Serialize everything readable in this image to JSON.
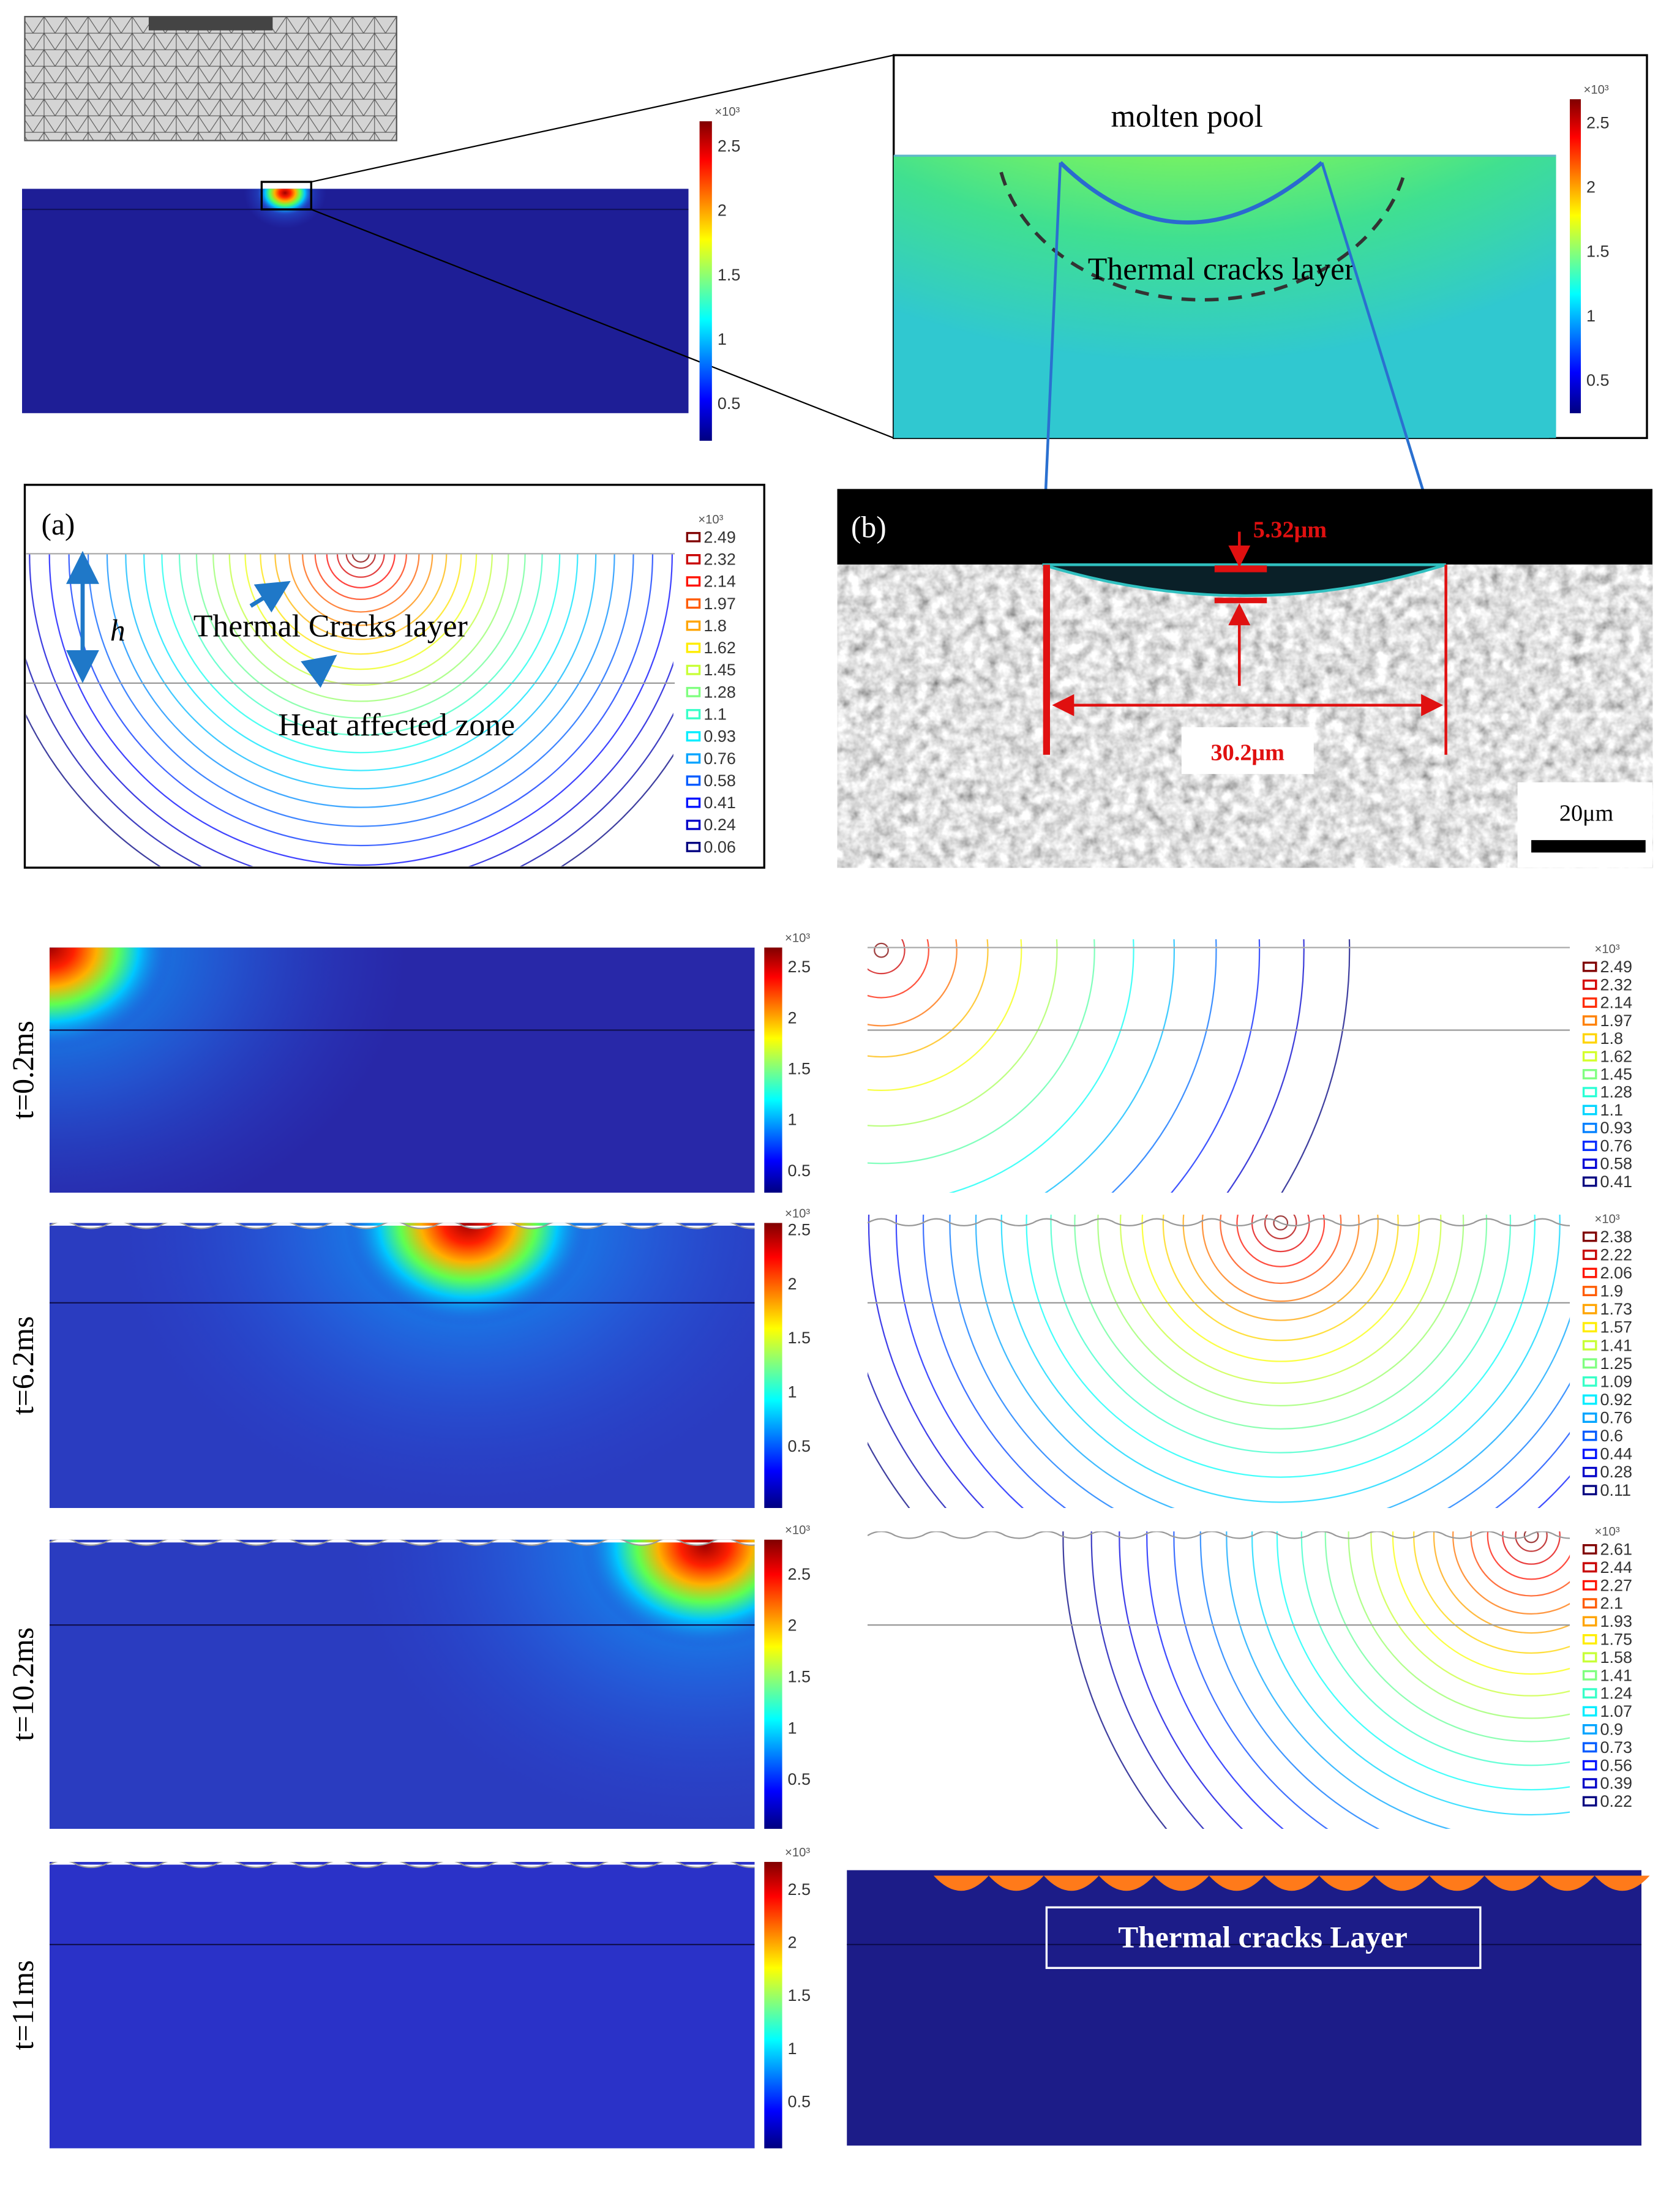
{
  "top_left_colorbar": {
    "exponent": "×10³",
    "ticks": [
      2.5,
      2,
      1.5,
      1,
      0.5
    ]
  },
  "zoom_panel": {
    "molten_pool": "molten pool",
    "layer": "Thermal cracks layer",
    "colorbar": {
      "exponent": "×10³",
      "ticks": [
        2.5,
        2,
        1.5,
        1,
        0.5
      ]
    }
  },
  "panel_a": {
    "label": "(a)",
    "height_symbol": "h",
    "cracks": "Thermal Cracks layer",
    "haz": "Heat affected zone",
    "colorbar": {
      "exponent": "×10³",
      "ticks": [
        2.49,
        2.32,
        2.14,
        1.97,
        1.8,
        1.62,
        1.45,
        1.28,
        1.1,
        0.93,
        0.76,
        0.58,
        0.41,
        0.24,
        0.06
      ]
    }
  },
  "panel_b": {
    "label": "(b)",
    "depth": "5.32μm",
    "width": "30.2μm",
    "scale": "20μm"
  },
  "rows": [
    {
      "time": "t=0.2ms",
      "field_colorbar": {
        "exponent": "×10³",
        "ticks": [
          2.5,
          2,
          1.5,
          1,
          0.5
        ]
      },
      "contour_colorbar": {
        "exponent": "×10³",
        "ticks": [
          2.49,
          2.32,
          2.14,
          1.97,
          1.8,
          1.62,
          1.45,
          1.28,
          1.1,
          0.93,
          0.76,
          0.58,
          0.41
        ]
      }
    },
    {
      "time": "t=6.2ms",
      "field_colorbar": {
        "exponent": "×10³",
        "ticks": [
          2.5,
          2,
          1.5,
          1,
          0.5
        ]
      },
      "contour_colorbar": {
        "exponent": "×10³",
        "ticks": [
          2.38,
          2.22,
          2.06,
          1.9,
          1.73,
          1.57,
          1.41,
          1.25,
          1.09,
          0.92,
          0.76,
          0.6,
          0.44,
          0.28,
          0.11
        ]
      }
    },
    {
      "time": "t=10.2ms",
      "field_colorbar": {
        "exponent": "×10³",
        "ticks": [
          2.5,
          2,
          1.5,
          1,
          0.5
        ]
      },
      "contour_colorbar": {
        "exponent": "×10³",
        "ticks": [
          2.61,
          2.44,
          2.27,
          2.1,
          1.93,
          1.75,
          1.58,
          1.41,
          1.24,
          1.07,
          0.9,
          0.73,
          0.56,
          0.39,
          0.22
        ]
      }
    },
    {
      "time": "t=11ms",
      "field_colorbar": {
        "exponent": "×10³",
        "ticks": [
          2.5,
          2,
          1.5,
          1,
          0.5
        ]
      },
      "layer_label": "Thermal cracks Layer"
    }
  ]
}
